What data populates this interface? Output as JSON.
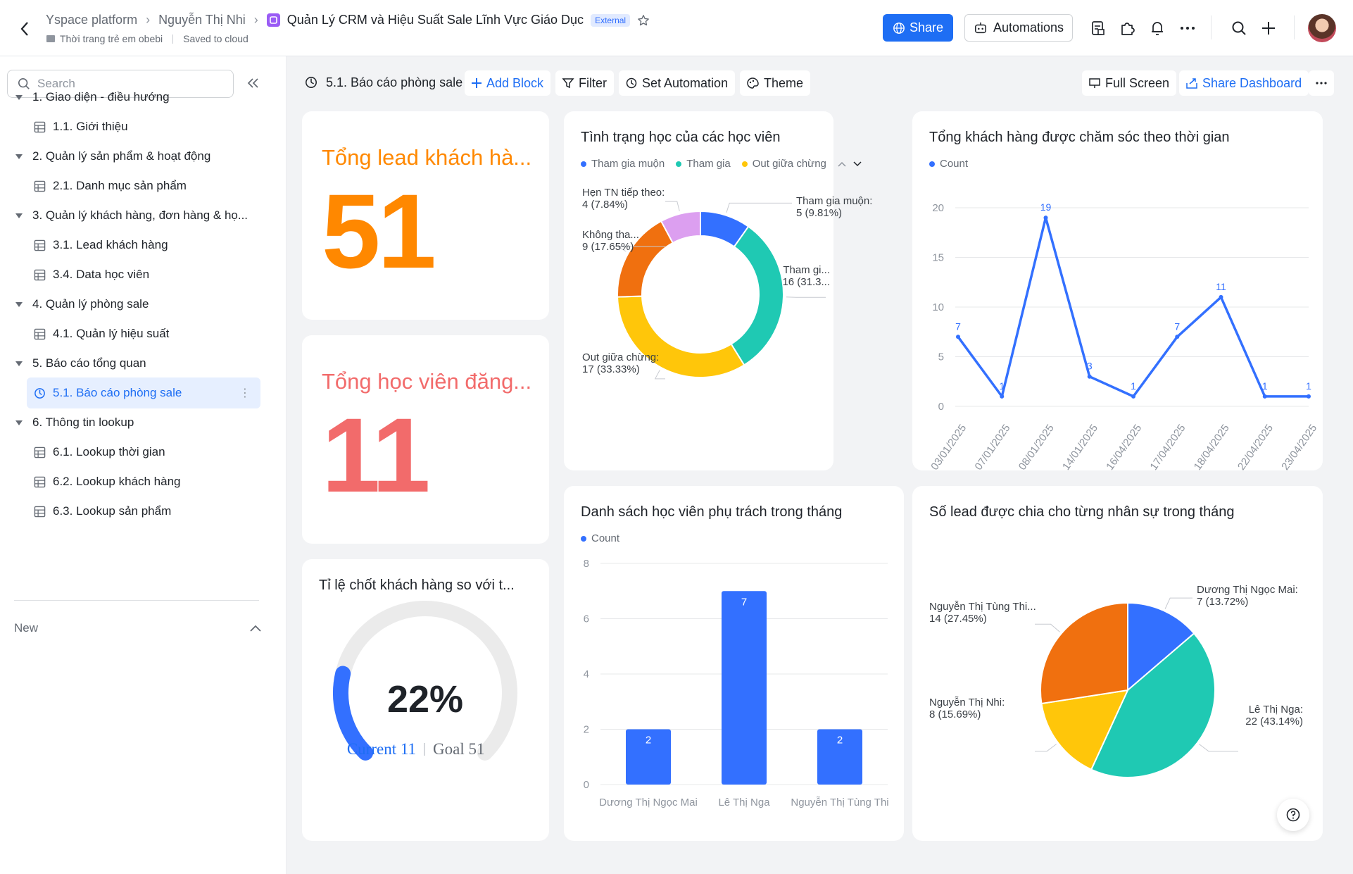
{
  "topbar": {
    "crumbs": [
      "Yspace platform",
      "Nguyễn Thị Nhi"
    ],
    "doc_title": "Quản Lý CRM và Hiệu Suất Sale Lĩnh Vực Giáo Dục",
    "badge": "External",
    "folder": "Thời trang trẻ em obebi",
    "save_status": "Saved to cloud",
    "share_label": "Share",
    "automations_label": "Automations",
    "icons": [
      "back-arrow-icon",
      "form-icon",
      "plugin-icon",
      "bell-icon",
      "more-icon",
      "search-icon",
      "plus-icon"
    ],
    "accent": "#1e6ef4"
  },
  "sidebar": {
    "search_placeholder": "Search",
    "items": [
      {
        "label": "1. Giao diện - điều hướng",
        "type": "folder"
      },
      {
        "label": "1.1. Giới thiệu",
        "type": "table"
      },
      {
        "label": "2. Quản lý sản phẩm & hoạt động",
        "type": "folder"
      },
      {
        "label": "2.1. Danh mục sản phẩm",
        "type": "table"
      },
      {
        "label": "3. Quản lý khách hàng, đơn hàng & họ...",
        "type": "folder"
      },
      {
        "label": "3.1. Lead khách hàng",
        "type": "table"
      },
      {
        "label": "3.4. Data học viên",
        "type": "table"
      },
      {
        "label": "4. Quản lý phòng sale",
        "type": "folder"
      },
      {
        "label": "4.1. Quản lý hiệu suất",
        "type": "table"
      },
      {
        "label": "5. Báo cáo tổng quan",
        "type": "folder"
      },
      {
        "label": "5.1. Báo cáo phòng sale",
        "type": "dashboard",
        "active": true
      },
      {
        "label": "6. Thông tin lookup",
        "type": "folder"
      },
      {
        "label": "6.1. Lookup thời gian",
        "type": "table"
      },
      {
        "label": "6.2. Lookup khách hàng",
        "type": "table"
      },
      {
        "label": "6.3. Lookup sản phẩm",
        "type": "table"
      }
    ],
    "new_label": "New"
  },
  "dashbar": {
    "title": "5.1. Báo cáo phòng sale",
    "add_block": "Add Block",
    "filter": "Filter",
    "set_automation": "Set Automation",
    "theme": "Theme",
    "full_screen": "Full Screen",
    "share_dashboard": "Share Dashboard"
  },
  "kpi1": {
    "title": "Tổng lead khách hà...",
    "value": "51",
    "color": "#ff8800"
  },
  "kpi2": {
    "title": "Tổng học viên đăng...",
    "value": "11",
    "color": "#f26b6b"
  },
  "gauge": {
    "title": "Tỉ lệ chốt khách hàng so với t...",
    "percent_text": "22%",
    "current_label": "Current 11",
    "goal_label": "Goal 51",
    "value": 11,
    "goal": 51
  },
  "chart_data": [
    {
      "type": "pie",
      "variant": "donut",
      "title": "Tình trạng học của các học viên",
      "legend": [
        "Tham gia muộn",
        "Tham gia",
        "Out giữa chừng"
      ],
      "slices": [
        {
          "name": "Tham gia muộn",
          "value": 5,
          "label": [
            "Tham gia muộn:",
            "5 (9.81%)"
          ],
          "color": "#3370ff"
        },
        {
          "name": "Tham gia",
          "value": 16,
          "label": [
            "Tham gi...",
            "16 (31.3..."
          ],
          "color": "#1fc9b3"
        },
        {
          "name": "Out giữa chừng",
          "value": 17,
          "label": [
            "Out giữa chừng:",
            "17 (33.33%)"
          ],
          "color": "#ffc60a"
        },
        {
          "name": "Không tha...",
          "value": 9,
          "label": [
            "Không tha...",
            "9 (17.65%)"
          ],
          "color": "#f0700f"
        },
        {
          "name": "Hẹn TN tiếp theo",
          "value": 4,
          "label": [
            "Hẹn TN tiếp theo:",
            "4 (7.84%)"
          ],
          "color": "#dc9ff0"
        }
      ]
    },
    {
      "type": "line",
      "title": "Tổng khách hàng được chăm sóc theo thời gian",
      "legend": [
        "Count"
      ],
      "categories": [
        "03/01/2025",
        "07/01/2025",
        "08/01/2025",
        "14/01/2025",
        "16/04/2025",
        "17/04/2025",
        "18/04/2025",
        "22/04/2025",
        "23/04/2025"
      ],
      "values": [
        7,
        1,
        19,
        3,
        1,
        7,
        11,
        1,
        1
      ],
      "ylim": [
        0,
        20
      ],
      "yticks": [
        0,
        5,
        10,
        15,
        20
      ],
      "color": "#3370ff"
    },
    {
      "type": "bar",
      "title": "Danh sách học viên phụ trách trong tháng",
      "legend": [
        "Count"
      ],
      "categories": [
        "Dương Thị Ngọc Mai",
        "Lê Thị Nga",
        "Nguyễn Thị Tùng Thi"
      ],
      "values": [
        2,
        7,
        2
      ],
      "ylim": [
        0,
        8
      ],
      "yticks": [
        0,
        2,
        4,
        6,
        8
      ],
      "color": "#3370ff"
    },
    {
      "type": "pie",
      "title": "Số lead được chia cho từng nhân sự trong tháng",
      "slices": [
        {
          "name": "Dương Thị Ngọc Mai",
          "value": 7,
          "label": [
            "Dương Thị Ngọc Mai:",
            "7 (13.72%)"
          ],
          "color": "#3370ff"
        },
        {
          "name": "Lê Thị Nga",
          "value": 22,
          "label": [
            "Lê Thị Nga:",
            "22 (43.14%)"
          ],
          "color": "#1fc9b3"
        },
        {
          "name": "Nguyễn Thị Nhi",
          "value": 8,
          "label": [
            "Nguyễn Thị  Nhi:",
            "8 (15.69%)"
          ],
          "color": "#ffc60a"
        },
        {
          "name": "Nguyễn Thị Tùng Thi...",
          "value": 14,
          "label": [
            "Nguyễn Thị Tùng Thi...",
            "14 (27.45%)"
          ],
          "color": "#f0700f"
        }
      ]
    }
  ]
}
